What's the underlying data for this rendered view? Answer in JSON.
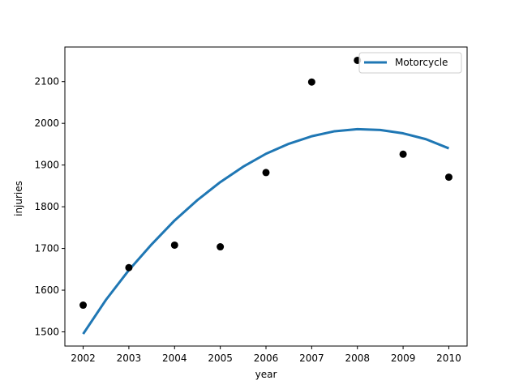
{
  "chart_data": {
    "type": "scatter",
    "xlabel": "year",
    "ylabel": "injuries",
    "xlim": [
      2001.6,
      2010.4
    ],
    "ylim": [
      1466,
      2183
    ],
    "x_ticks": [
      2002,
      2003,
      2004,
      2005,
      2006,
      2007,
      2008,
      2009,
      2010
    ],
    "y_ticks": [
      1500,
      1600,
      1700,
      1800,
      1900,
      2000,
      2100
    ],
    "grid": false,
    "legend_position": "top-right",
    "scatter": {
      "color": "#000000",
      "points": [
        {
          "x": 2002,
          "y": 1564
        },
        {
          "x": 2003,
          "y": 1654
        },
        {
          "x": 2004,
          "y": 1708
        },
        {
          "x": 2005,
          "y": 1704
        },
        {
          "x": 2006,
          "y": 1882
        },
        {
          "x": 2007,
          "y": 2099
        },
        {
          "x": 2008,
          "y": 2151
        },
        {
          "x": 2009,
          "y": 1926
        },
        {
          "x": 2010,
          "y": 1871
        }
      ]
    },
    "series": [
      {
        "name": "Motorcycle",
        "type": "line",
        "color": "#1f77b4",
        "x": [
          2002,
          2002.5,
          2003,
          2003.5,
          2004,
          2004.5,
          2005,
          2005.5,
          2006,
          2006.5,
          2007,
          2007.5,
          2008,
          2008.5,
          2009,
          2009.5,
          2010
        ],
        "y": [
          1495,
          1577,
          1648,
          1710,
          1767,
          1816,
          1859,
          1896,
          1927,
          1951,
          1969,
          1981,
          1986,
          1984,
          1976,
          1962,
          1940
        ]
      }
    ]
  }
}
